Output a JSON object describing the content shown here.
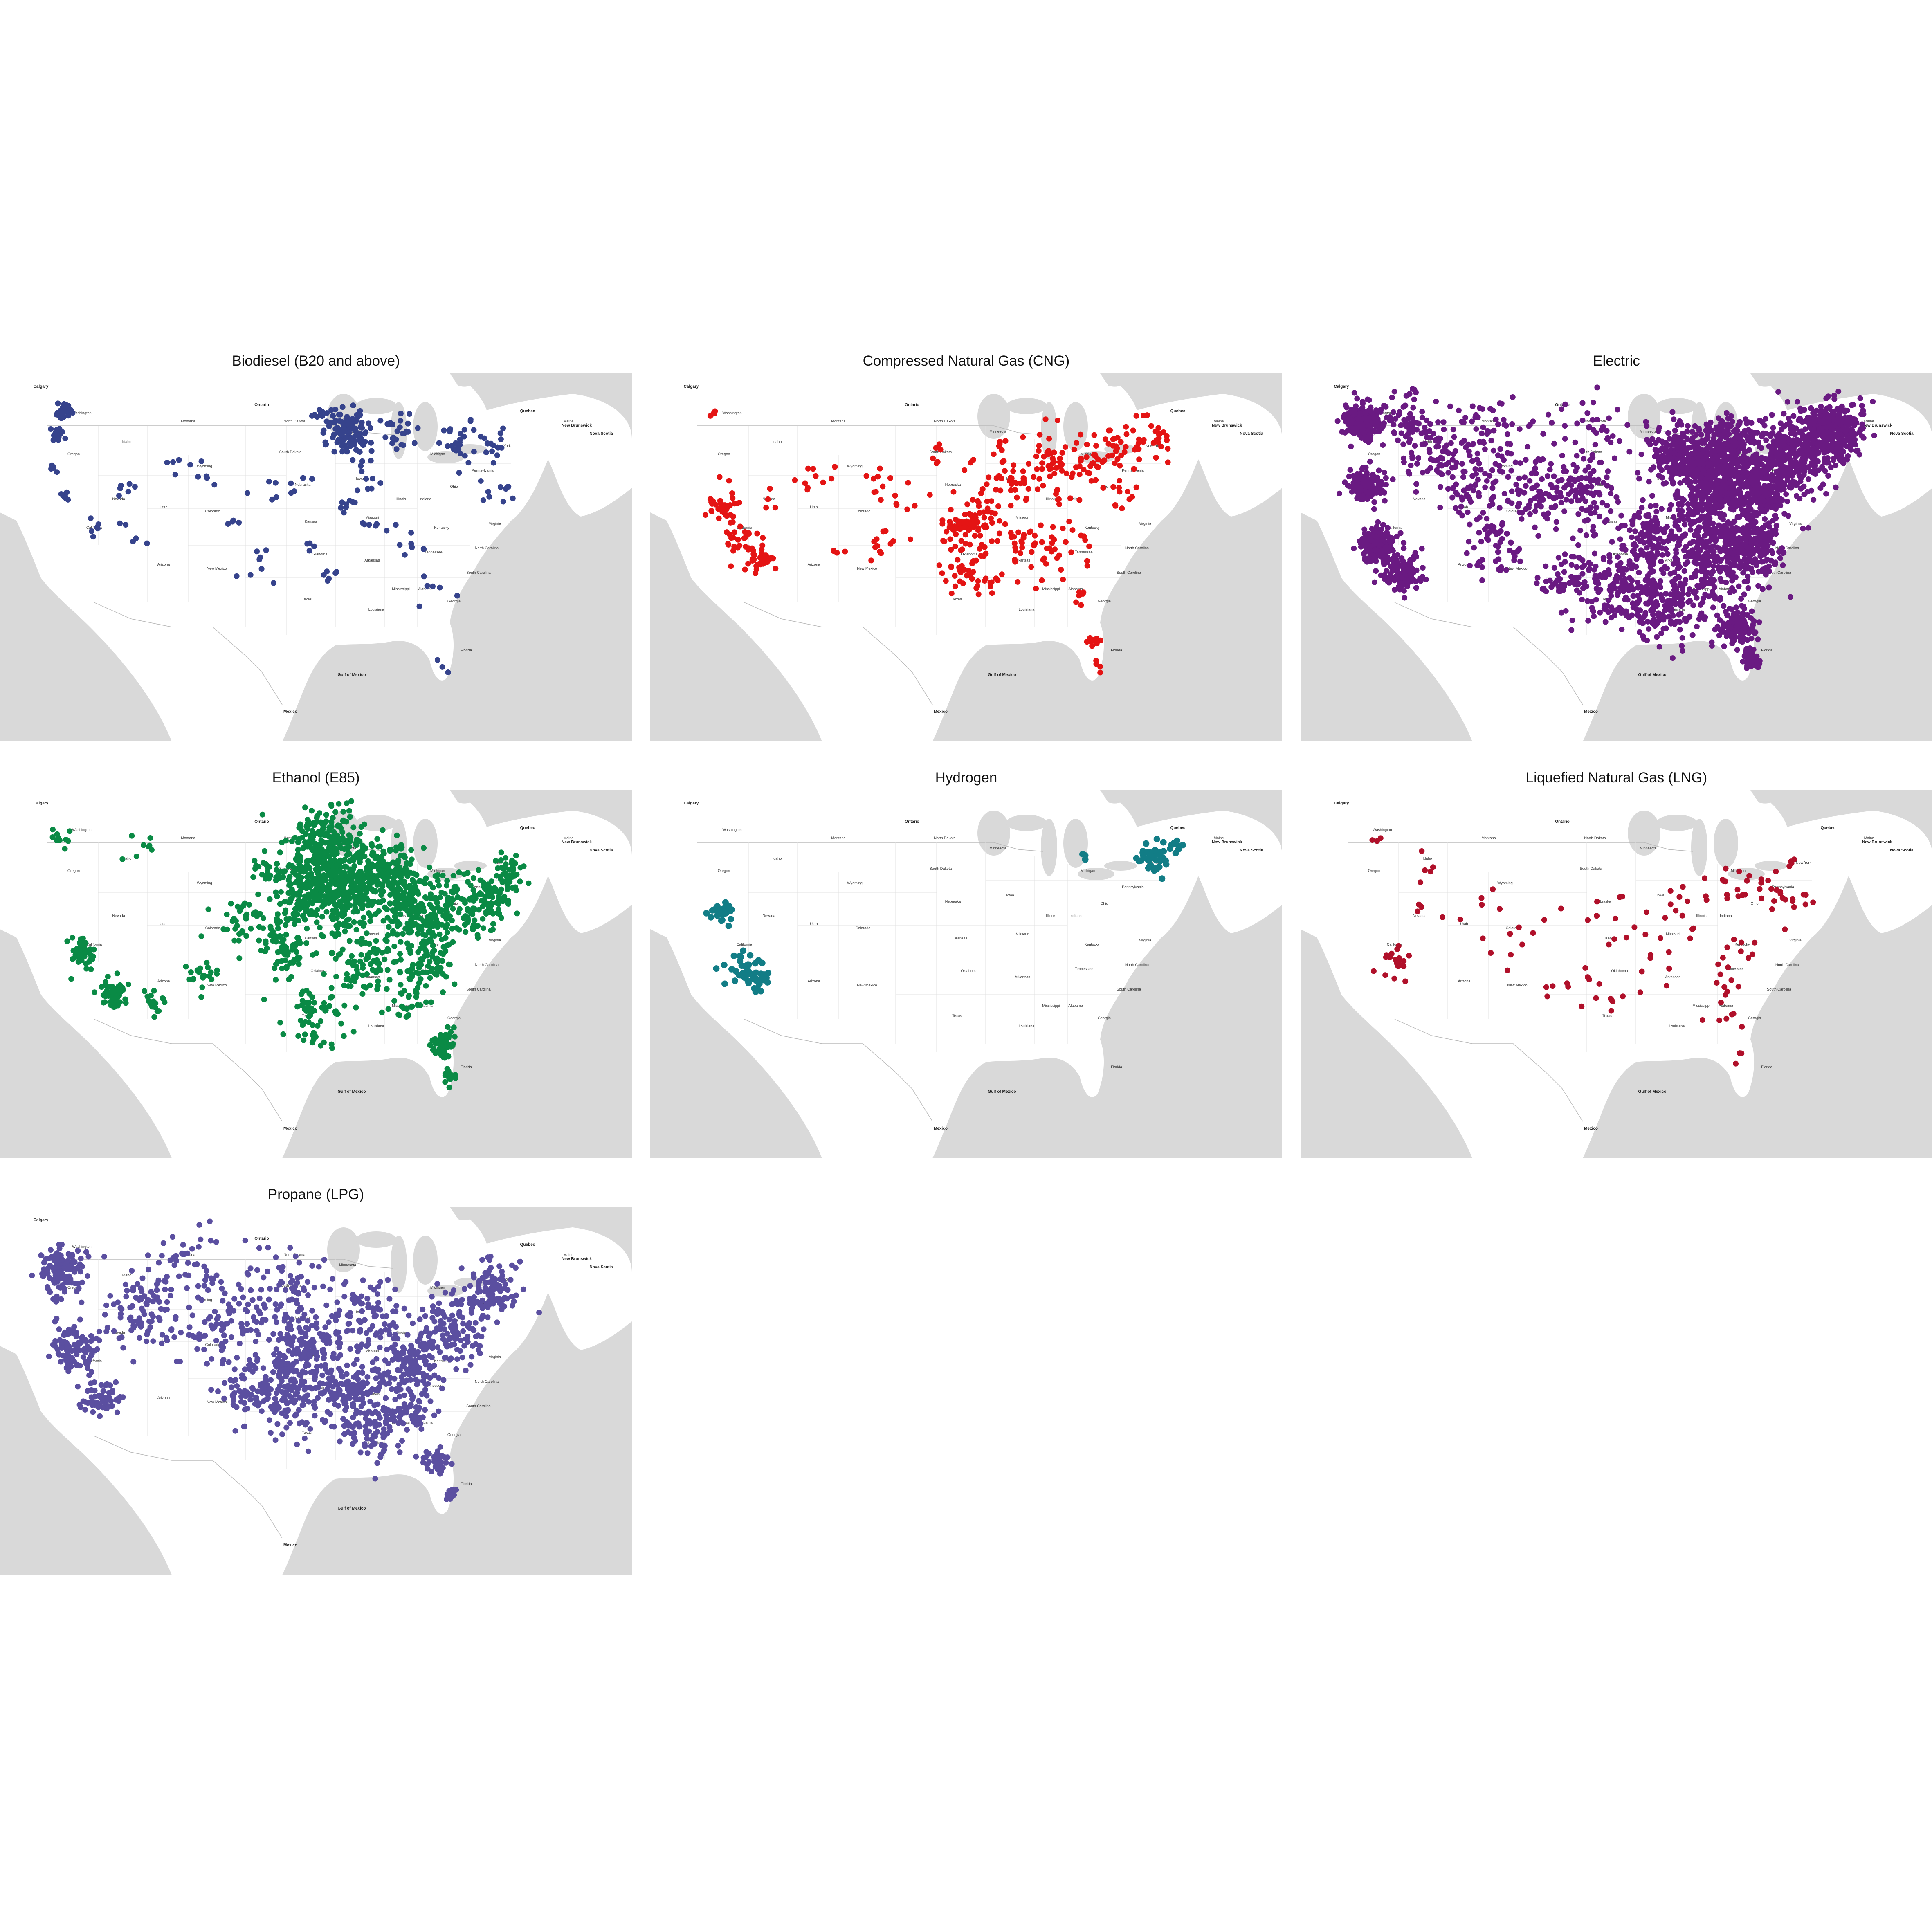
{
  "panels": [
    {
      "title": "Biodiesel (B20 and above)",
      "color": "#36438c",
      "pattern": "biodiesel"
    },
    {
      "title": "Compressed Natural Gas (CNG)",
      "color": "#e41414",
      "pattern": "cng"
    },
    {
      "title": "Electric",
      "color": "#6a1a82",
      "pattern": "electric"
    },
    {
      "title": "Ethanol (E85)",
      "color": "#0a8a45",
      "pattern": "ethanol"
    },
    {
      "title": "Hydrogen",
      "color": "#127d86",
      "pattern": "hydrogen"
    },
    {
      "title": "Liquefied Natural Gas (LNG)",
      "color": "#b0102a",
      "pattern": "lng"
    },
    {
      "title": "Propane (LPG)",
      "color": "#5b4fa0",
      "pattern": "propane"
    }
  ],
  "map_labels": {
    "states": [
      "Washington",
      "Oregon",
      "California",
      "Nevada",
      "Idaho",
      "Montana",
      "Wyoming",
      "Utah",
      "Arizona",
      "Colorado",
      "New Mexico",
      "North Dakota",
      "South Dakota",
      "Nebraska",
      "Kansas",
      "Oklahoma",
      "Texas",
      "Minnesota",
      "Iowa",
      "Missouri",
      "Arkansas",
      "Louisiana",
      "Illinois",
      "Indiana",
      "Ohio",
      "Michigan",
      "Kentucky",
      "Tennessee",
      "Mississippi",
      "Alabama",
      "Georgia",
      "Florida",
      "South Carolina",
      "North Carolina",
      "Virginia",
      "Pennsylvania",
      "New York",
      "Maine"
    ],
    "countries": [
      "Mexico"
    ],
    "waters": [
      "Gulf of Mexico"
    ],
    "provinces": [
      "Ontario",
      "Quebec",
      "New Brunswick",
      "Nova Scotia",
      "Calgary"
    ]
  }
}
